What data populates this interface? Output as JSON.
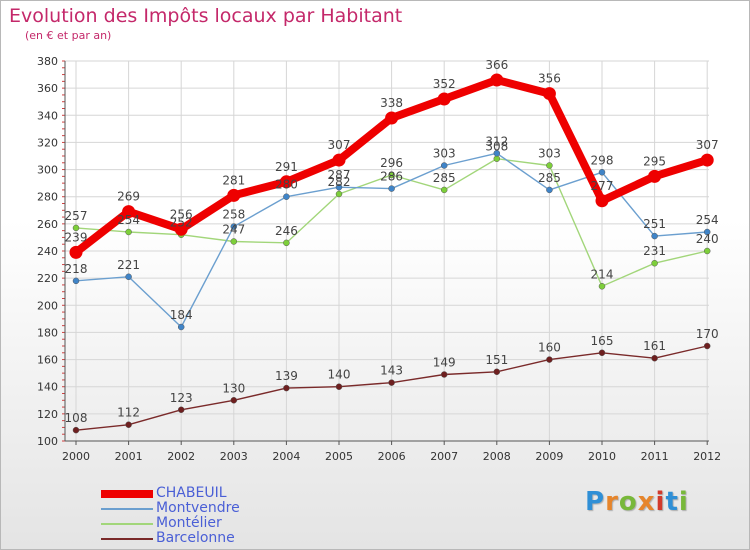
{
  "header": {
    "title": "Evolution des Impôts locaux par Habitant",
    "subtitle": "(en € et par an)"
  },
  "brand": {
    "letters": [
      "P",
      "r",
      "o",
      "x",
      "i",
      "t",
      "i"
    ],
    "colors": [
      "#2f8fd6",
      "#e6852b",
      "#78b83a",
      "#e6852b",
      "#d23a2b",
      "#2f8fd6",
      "#78b83a"
    ]
  },
  "colors": {
    "title": "#c4286a",
    "axis": "#555555",
    "grid": "#d6d6d6",
    "tick_label": "#333333",
    "data_label": "#444444"
  },
  "chart_data": {
    "type": "line",
    "title": "Evolution des Impôts locaux par Habitant",
    "subtitle": "(en € et par an)",
    "xlabel": "",
    "ylabel": "",
    "x": [
      "2000",
      "2001",
      "2002",
      "2003",
      "2004",
      "2005",
      "2006",
      "2007",
      "2008",
      "2009",
      "2010",
      "2011",
      "2012"
    ],
    "ylim": [
      100,
      380
    ],
    "yticks": [
      100,
      120,
      140,
      160,
      180,
      200,
      220,
      240,
      260,
      280,
      300,
      320,
      340,
      360,
      380
    ],
    "grid": true,
    "legend_position": "bottom-left",
    "series": [
      {
        "name": "CHABEUIL",
        "values": [
          239,
          269,
          256,
          281,
          291,
          307,
          338,
          352,
          366,
          356,
          277,
          295,
          307
        ],
        "color": "#ee0000",
        "marker_fill": "#ee0000",
        "style": "bold"
      },
      {
        "name": "Montvendre",
        "values": [
          218,
          221,
          184,
          258,
          280,
          287,
          286,
          303,
          312,
          285,
          298,
          251,
          254
        ],
        "color": "#6b9fcf",
        "marker_fill": "#3f84c8",
        "style": "thin"
      },
      {
        "name": "Montélier",
        "values": [
          257,
          254,
          252,
          247,
          246,
          282,
          296,
          285,
          308,
          303,
          214,
          231,
          240
        ],
        "color": "#a2d67a",
        "marker_fill": "#7dcf3a",
        "style": "thin"
      },
      {
        "name": "Barcelonne",
        "values": [
          108,
          112,
          123,
          130,
          139,
          140,
          143,
          149,
          151,
          160,
          165,
          161,
          170
        ],
        "color": "#7a2a2a",
        "marker_fill": "#6e1f1f",
        "style": "thin"
      }
    ]
  }
}
